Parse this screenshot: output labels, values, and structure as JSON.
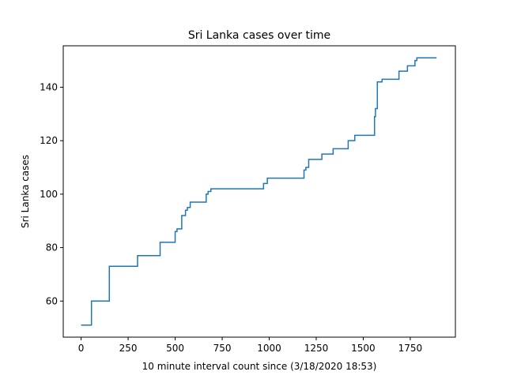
{
  "chart_data": {
    "type": "line",
    "title": "Sri Lanka cases over time",
    "xlabel": "10 minute interval count since (3/18/2020 18:53)",
    "ylabel": "Sri Lanka cases",
    "xlim": [
      -95,
      1990
    ],
    "ylim": [
      46.5,
      155.5
    ],
    "xticks": [
      0,
      250,
      500,
      750,
      1000,
      1250,
      1500,
      1750
    ],
    "yticks": [
      60,
      80,
      100,
      120,
      140
    ],
    "grid": false,
    "line_color": "#1f77b4",
    "series": [
      {
        "step": "post",
        "x": [
          0,
          55,
          150,
          300,
          420,
          500,
          510,
          535,
          555,
          565,
          580,
          665,
          675,
          690,
          970,
          990,
          1185,
          1195,
          1210,
          1280,
          1340,
          1420,
          1455,
          1560,
          1565,
          1575,
          1585,
          1600,
          1690,
          1735,
          1775,
          1785,
          1890
        ],
        "y": [
          51,
          60,
          73,
          77,
          82,
          86,
          87,
          92,
          94,
          95,
          97,
          100,
          101,
          102,
          104,
          106,
          109,
          110,
          113,
          115,
          117,
          120,
          122,
          129,
          132,
          142,
          142,
          143,
          146,
          148,
          150,
          151,
          151
        ]
      }
    ]
  }
}
